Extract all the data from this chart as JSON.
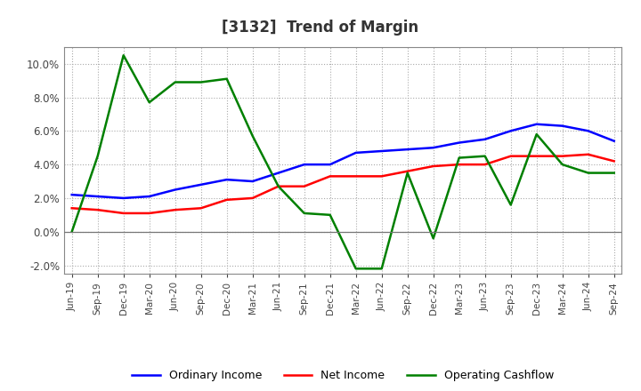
{
  "title": "[3132]  Trend of Margin",
  "x_labels": [
    "Jun-19",
    "Sep-19",
    "Dec-19",
    "Mar-20",
    "Jun-20",
    "Sep-20",
    "Dec-20",
    "Mar-21",
    "Jun-21",
    "Sep-21",
    "Dec-21",
    "Mar-22",
    "Jun-22",
    "Sep-22",
    "Dec-22",
    "Mar-23",
    "Jun-23",
    "Sep-23",
    "Dec-23",
    "Mar-24",
    "Jun-24",
    "Sep-24"
  ],
  "ordinary_income": [
    2.2,
    2.1,
    2.0,
    2.1,
    2.5,
    2.8,
    3.1,
    3.0,
    3.5,
    4.0,
    4.0,
    4.7,
    4.8,
    4.9,
    5.0,
    5.3,
    5.5,
    6.0,
    6.4,
    6.3,
    6.0,
    5.4
  ],
  "net_income": [
    1.4,
    1.3,
    1.1,
    1.1,
    1.3,
    1.4,
    1.9,
    2.0,
    2.7,
    2.7,
    3.3,
    3.3,
    3.3,
    3.6,
    3.9,
    4.0,
    4.0,
    4.5,
    4.5,
    4.5,
    4.6,
    4.2
  ],
  "operating_cashflow": [
    0.0,
    4.5,
    10.5,
    7.7,
    8.9,
    8.9,
    9.1,
    5.7,
    2.7,
    1.1,
    1.0,
    -2.2,
    -2.2,
    3.5,
    -0.4,
    4.4,
    4.5,
    1.6,
    5.8,
    4.0,
    3.5,
    3.5
  ],
  "ylim": [
    -2.5,
    11.0
  ],
  "yticks": [
    -2.0,
    0.0,
    2.0,
    4.0,
    6.0,
    8.0,
    10.0
  ],
  "line_color_oi": "#0000FF",
  "line_color_ni": "#FF0000",
  "line_color_ocf": "#008000",
  "background_color": "#FFFFFF",
  "grid_color": "#AAAAAA",
  "title_fontsize": 12,
  "legend_fontsize": 9,
  "title_color": "#333333"
}
